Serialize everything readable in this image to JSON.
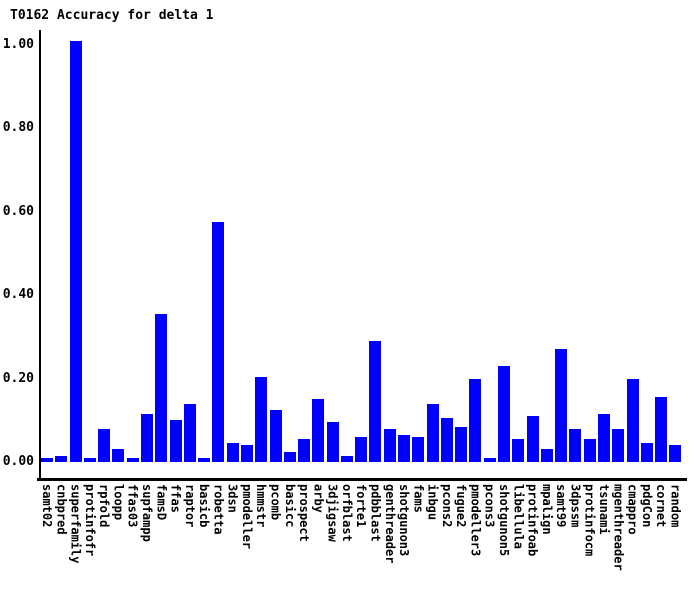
{
  "title": "T0162 Accuracy for delta 1",
  "chart_data": {
    "type": "bar",
    "title": "T0162 Accuracy for delta 1",
    "xlabel": "",
    "ylabel": "",
    "grid": false,
    "legend": false,
    "bar_color": "#0000ff",
    "axis_color": "#000000",
    "background_color": "#ffffff",
    "ylim": [
      -0.04,
      1.07
    ],
    "y_ticks": [
      "0.00",
      "0.20",
      "0.40",
      "0.60",
      "0.80",
      "1.00"
    ],
    "y_tick_values": [
      0.0,
      0.2,
      0.4,
      0.6,
      0.8,
      1.0
    ],
    "categories": [
      "samt02",
      "cnbpred",
      "superfamily",
      "protinfofr",
      "rpfold",
      "loopp",
      "ffas03",
      "supfampp",
      "famsD",
      "ffas",
      "raptor",
      "basicb",
      "robetta",
      "3dsn",
      "pmodeller",
      "hmmstr",
      "pcomb",
      "basicc",
      "prospect",
      "arby",
      "3djigsaw",
      "orfblast",
      "forte1",
      "pdbblast",
      "genthreader",
      "shotgunon3",
      "fams",
      "inbgu",
      "pcons2",
      "fugue2",
      "pmodeller3",
      "pcons3",
      "shotgunon5",
      "libellula",
      "protinfoab",
      "mpalign",
      "samt99",
      "3dpssm",
      "protinfocm",
      "tsunami",
      "mgenthreader",
      "cmappro",
      "pdgCon",
      "cornet",
      "random"
    ],
    "values": [
      0.01,
      0.015,
      1.01,
      0.01,
      0.08,
      0.03,
      0.01,
      0.115,
      0.355,
      0.1,
      0.14,
      0.01,
      0.575,
      0.045,
      0.04,
      0.205,
      0.125,
      0.025,
      0.055,
      0.15,
      0.095,
      0.015,
      0.06,
      0.29,
      0.08,
      0.065,
      0.06,
      0.14,
      0.105,
      0.085,
      0.2,
      0.01,
      0.23,
      0.055,
      0.11,
      0.03,
      0.27,
      0.08,
      0.055,
      0.115,
      0.08,
      0.2,
      0.045,
      0.155,
      0.04
    ]
  }
}
